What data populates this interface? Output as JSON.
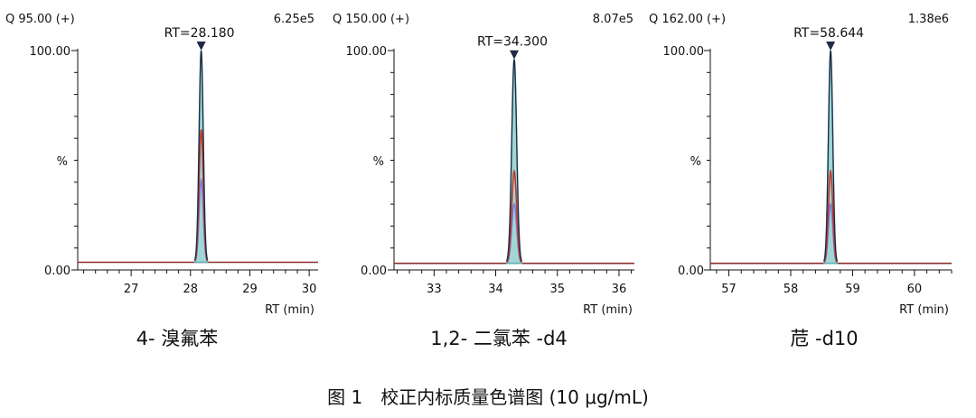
{
  "figure": {
    "caption": "图 1　校正内标质量色谱图 (10 μg/mL)"
  },
  "chart_data": [
    {
      "type": "line",
      "channel": "Q 95.00 (+)",
      "intensity": "6.25e5",
      "rt_label": "RT=28.180",
      "peak_rt": 28.18,
      "compound": "4- 溴氟苯",
      "xlabel": "RT (min)",
      "ylabel": "%",
      "ytick_labels": [
        "100.00",
        "0.00"
      ],
      "xlim": [
        26.1,
        30.15
      ],
      "ylim": [
        0,
        100
      ],
      "xticks": [
        27,
        28,
        29,
        30
      ],
      "xtick_labels": [
        "27",
        "28",
        "29",
        "30"
      ],
      "baseline": 3.5,
      "peak_width": 0.035,
      "series": [
        {
          "color": "#1f2a44",
          "peak": 100
        },
        {
          "color": "#c0392b",
          "peak": 64
        },
        {
          "color": "#7b7fd9",
          "peak": 41
        },
        {
          "color": "#5fb3b3",
          "peak": 100
        }
      ]
    },
    {
      "type": "line",
      "channel": "Q 150.00 (+)",
      "intensity": "8.07e5",
      "rt_label": "RT=34.300",
      "peak_rt": 34.3,
      "compound": "1,2- 二氯苯 -d4",
      "xlabel": "RT (min)",
      "ylabel": "%",
      "ytick_labels": [
        "100.00",
        "0.00"
      ],
      "xlim": [
        32.35,
        36.25
      ],
      "ylim": [
        0,
        100
      ],
      "xticks": [
        33,
        34,
        35,
        36
      ],
      "xtick_labels": [
        "33",
        "34",
        "35",
        "36"
      ],
      "baseline": 3.0,
      "peak_width": 0.04,
      "series": [
        {
          "color": "#1f2a44",
          "peak": 96
        },
        {
          "color": "#c0392b",
          "peak": 45
        },
        {
          "color": "#7b7fd9",
          "peak": 30
        },
        {
          "color": "#5fb3b3",
          "peak": 96
        }
      ]
    },
    {
      "type": "line",
      "channel": "Q 162.00 (+)",
      "intensity": "1.38e6",
      "rt_label": "RT=58.644",
      "peak_rt": 58.644,
      "compound": "苊 -d10",
      "xlabel": "RT (min)",
      "ylabel": "%",
      "ytick_labels": [
        "100.00",
        "0.00"
      ],
      "xlim": [
        56.7,
        60.6
      ],
      "ylim": [
        0,
        100
      ],
      "xticks": [
        57,
        58,
        59,
        60
      ],
      "xtick_labels": [
        "57",
        "58",
        "59",
        "60"
      ],
      "baseline": 3.0,
      "peak_width": 0.035,
      "series": [
        {
          "color": "#1f2a44",
          "peak": 100
        },
        {
          "color": "#c0392b",
          "peak": 45
        },
        {
          "color": "#7b7fd9",
          "peak": 30
        },
        {
          "color": "#5fb3b3",
          "peak": 100
        }
      ]
    }
  ]
}
